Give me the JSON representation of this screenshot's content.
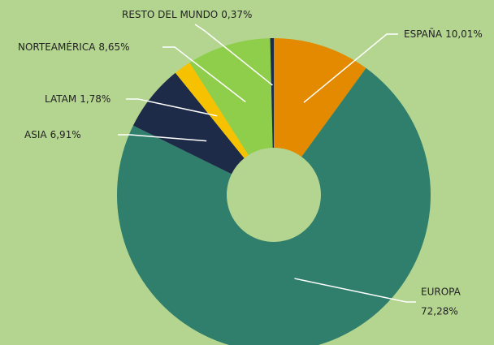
{
  "chart_data": {
    "type": "donut",
    "categories": [
      "ESPAÑA",
      "EUROPA",
      "ASIA",
      "LATAM",
      "NORTEAMÉRICA",
      "RESTO DEL MUNDO"
    ],
    "values": [
      10.01,
      72.28,
      6.91,
      1.78,
      8.65,
      0.37
    ],
    "value_labels": [
      "10,01%",
      "72,28%",
      "6,91%",
      "1,78%",
      "8,65%",
      "0,37%"
    ],
    "colors": [
      "#e38a00",
      "#2f7f6c",
      "#1d2a48",
      "#f6c100",
      "#8fce4a",
      "#1d2a48"
    ]
  }
}
